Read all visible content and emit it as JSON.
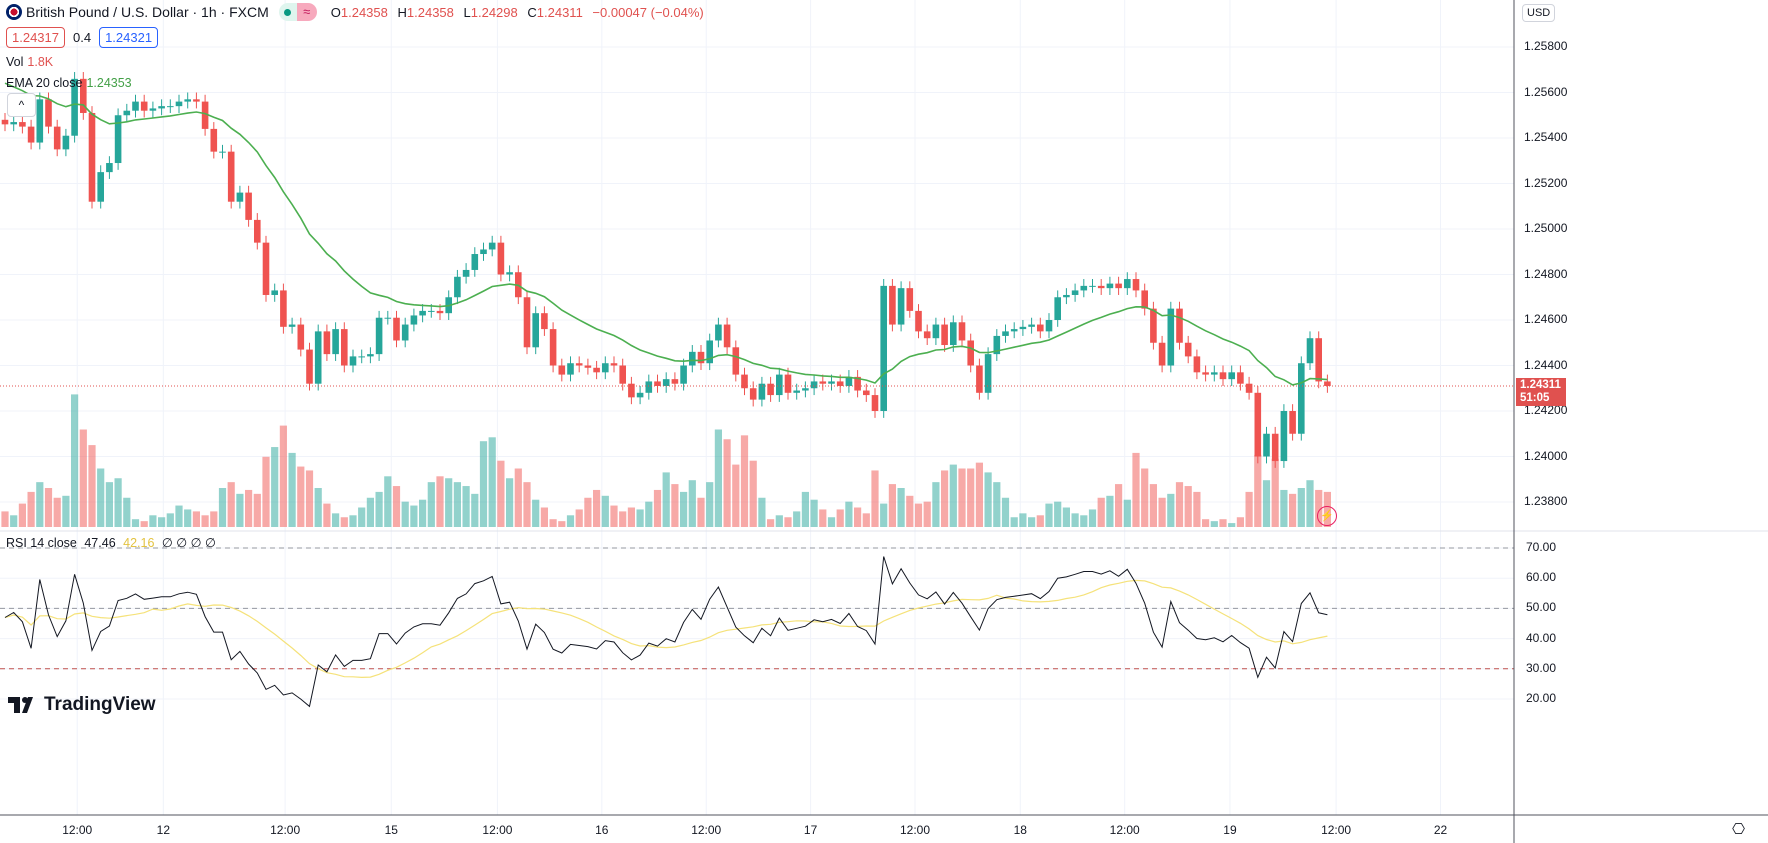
{
  "header": {
    "title": "British Pound / U.S. Dollar · 1h · FXCM",
    "ohlc": [
      {
        "k": "O",
        "v": "1.24358"
      },
      {
        "k": "H",
        "v": "1.24358"
      },
      {
        "k": "L",
        "v": "1.24298"
      },
      {
        "k": "C",
        "v": "1.24311"
      }
    ],
    "change": "−0.00047 (−0.04%)",
    "sell_price": "1.24317",
    "spread": "0.4",
    "buy_price": "1.24321",
    "market_status_icon": "market-open-dot",
    "data_icon": "≈"
  },
  "indicators": {
    "vol_label": "Vol",
    "vol_value": "1.8K",
    "ema_label": "EMA 20 close",
    "ema_value": "1.24353",
    "collapse_icon": "^",
    "rsi_label": "RSI 14 close",
    "rsi_value": "47.46",
    "rsi_ma_value": "42.16",
    "rsi_extra": "∅ ∅ ∅ ∅"
  },
  "axis": {
    "currency": "USD",
    "current_price": "1.24311",
    "countdown": "51:05"
  },
  "brand": "TradingView",
  "colors": {
    "up": "#26a69a",
    "down": "#ef5350",
    "ema": "#4caf50",
    "rsi": "#131722",
    "rsi_ma": "#f5e27a"
  },
  "chart_data": {
    "type": "candlestick",
    "title": "British Pound / U.S. Dollar · 1h · FXCM",
    "ylim": [
      1.2371,
      1.259
    ],
    "yticks": [
      "1.25800",
      "1.25600",
      "1.25400",
      "1.25200",
      "1.25000",
      "1.24800",
      "1.24600",
      "1.24400",
      "1.24200",
      "1.24000",
      "1.23800"
    ],
    "xticks": [
      {
        "label": "12:00",
        "bar": 8.3
      },
      {
        "label": "12",
        "bar": 18.2
      },
      {
        "label": "12:00",
        "bar": 32.2
      },
      {
        "label": "15",
        "bar": 44.4
      },
      {
        "label": "12:00",
        "bar": 56.6
      },
      {
        "label": "16",
        "bar": 68.6
      },
      {
        "label": "12:00",
        "bar": 80.6
      },
      {
        "label": "17",
        "bar": 92.6
      },
      {
        "label": "12:00",
        "bar": 104.6
      },
      {
        "label": "18",
        "bar": 116.7
      },
      {
        "label": "12:00",
        "bar": 128.7
      },
      {
        "label": "19",
        "bar": 140.8
      },
      {
        "label": "12:00",
        "bar": 153
      },
      {
        "label": "22",
        "bar": 165
      }
    ],
    "first_open": 1.2548,
    "close": [
      1.2546,
      1.2547,
      1.2545,
      1.2538,
      1.2557,
      1.2545,
      1.2535,
      1.2541,
      1.2566,
      1.2551,
      1.2512,
      1.2525,
      1.2529,
      1.255,
      1.2552,
      1.2556,
      1.2552,
      1.2553,
      1.2554,
      1.2554,
      1.2556,
      1.2557,
      1.2556,
      1.2544,
      1.2534,
      1.2534,
      1.2512,
      1.2516,
      1.2504,
      1.2494,
      1.2471,
      1.2473,
      1.2457,
      1.2458,
      1.2447,
      1.2432,
      1.2455,
      1.2445,
      1.2456,
      1.244,
      1.2444,
      1.2444,
      1.2445,
      1.2461,
      1.2461,
      1.2451,
      1.2458,
      1.2462,
      1.2464,
      1.2464,
      1.2463,
      1.247,
      1.2479,
      1.2482,
      1.2489,
      1.2491,
      1.2494,
      1.248,
      1.2481,
      1.247,
      1.2448,
      1.2463,
      1.2456,
      1.244,
      1.2436,
      1.2441,
      1.244,
      1.2439,
      1.2437,
      1.2441,
      1.244,
      1.2432,
      1.2426,
      1.2428,
      1.2433,
      1.2431,
      1.2434,
      1.2432,
      1.244,
      1.2446,
      1.2441,
      1.2451,
      1.2458,
      1.2448,
      1.2436,
      1.243,
      1.2425,
      1.2432,
      1.2427,
      1.2436,
      1.2428,
      1.2429,
      1.243,
      1.2433,
      1.2432,
      1.2433,
      1.2431,
      1.2435,
      1.2429,
      1.2427,
      1.242,
      1.2475,
      1.2458,
      1.2474,
      1.2464,
      1.2455,
      1.2452,
      1.2458,
      1.2449,
      1.2459,
      1.2451,
      1.244,
      1.2428,
      1.2445,
      1.2453,
      1.2455,
      1.2456,
      1.2457,
      1.2458,
      1.2455,
      1.246,
      1.247,
      1.2471,
      1.2473,
      1.2475,
      1.2475,
      1.2474,
      1.2476,
      1.2474,
      1.2478,
      1.2473,
      1.2465,
      1.245,
      1.244,
      1.2465,
      1.245,
      1.2444,
      1.2437,
      1.2436,
      1.2437,
      1.2434,
      1.2437,
      1.2432,
      1.2428,
      1.24,
      1.241,
      1.2398,
      1.242,
      1.241,
      1.2441,
      1.2452,
      1.2433,
      1.2431
    ],
    "wick": 0.0003,
    "volume_k": [
      0.8,
      0.6,
      1.2,
      1.8,
      2.3,
      2.0,
      1.5,
      1.6,
      6.8,
      5.0,
      4.2,
      3.0,
      2.3,
      2.5,
      1.5,
      0.4,
      0.3,
      0.6,
      0.5,
      0.7,
      1.1,
      0.9,
      0.8,
      0.6,
      0.8,
      2.0,
      2.3,
      1.7,
      1.9,
      1.7,
      3.6,
      4.1,
      5.2,
      3.8,
      3.1,
      2.9,
      2.0,
      1.2,
      0.7,
      0.5,
      0.6,
      1.0,
      1.5,
      1.8,
      2.6,
      2.1,
      1.3,
      1.1,
      1.4,
      2.3,
      2.6,
      2.5,
      2.3,
      2.1,
      1.7,
      4.4,
      4.6,
      3.4,
      2.5,
      3.0,
      2.3,
      1.4,
      1.0,
      0.4,
      0.3,
      0.6,
      0.9,
      1.5,
      1.9,
      1.6,
      1.1,
      0.8,
      1.0,
      0.9,
      1.3,
      1.9,
      2.8,
      2.2,
      1.8,
      2.4,
      1.5,
      2.3,
      5.0,
      4.5,
      3.2,
      4.7,
      3.4,
      1.5,
      0.4,
      0.6,
      0.5,
      0.8,
      1.8,
      1.4,
      0.9,
      0.5,
      0.9,
      1.3,
      1.0,
      0.7,
      2.9,
      1.2,
      2.2,
      2.0,
      1.6,
      1.2,
      1.3,
      2.3,
      2.9,
      3.2,
      3.0,
      3.0,
      3.3,
      2.8,
      2.3,
      1.5,
      0.5,
      0.7,
      0.5,
      0.6,
      1.2,
      1.3,
      1.0,
      0.7,
      0.6,
      0.9,
      1.5,
      1.6,
      2.2,
      1.4,
      3.8,
      3.0,
      2.2,
      1.5,
      1.7,
      2.3,
      2.1,
      1.8,
      0.4,
      0.3,
      0.4,
      0.2,
      0.5,
      1.8,
      3.7,
      2.4,
      3.5,
      1.9,
      1.7,
      2.0,
      2.4,
      1.9,
      1.8
    ],
    "ema_period": 20,
    "ema_seed": 1.2566,
    "rsi": {
      "period": 14,
      "ma_period": 14,
      "ylim": [
        13,
        76
      ],
      "yticks": [
        "70.00",
        "60.00",
        "50.00",
        "40.00",
        "30.00",
        "20.00"
      ],
      "levels": [
        70,
        50,
        30
      ]
    }
  }
}
